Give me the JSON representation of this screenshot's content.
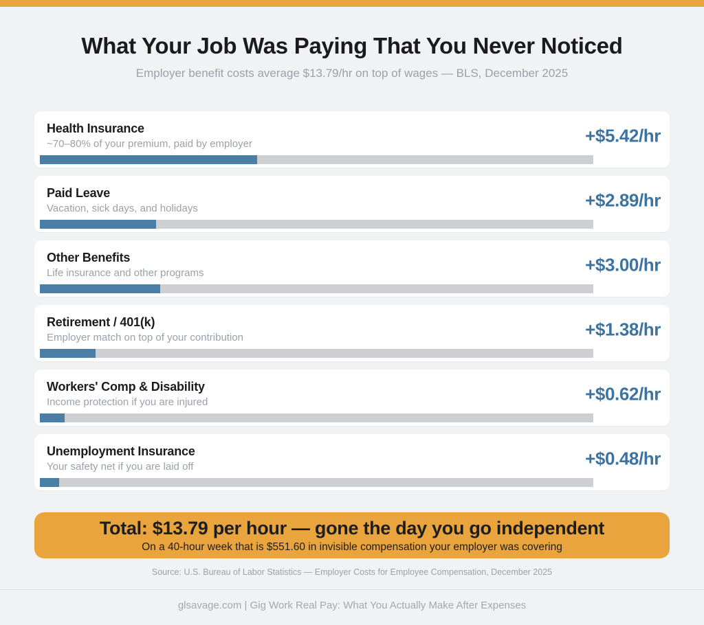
{
  "page": {
    "title": "What Your Job Was Paying That You Never Noticed",
    "subtitle": "Employer benefit costs average $13.79/hr on top of wages — BLS, December 2025",
    "source": "Source: U.S. Bureau of Labor Statistics — Employer Costs for Employee Compensation, December 2025",
    "footer": "glsavage.com  |  Gig Work Real Pay: What You Actually Make After Expenses"
  },
  "colors": {
    "accent_orange": "#E9A43D",
    "bar_blue": "#4B7EA4",
    "value_blue": "#3D73A0",
    "track_gray": "#CDCFD3",
    "background": "#F1F2F4"
  },
  "total_banner": {
    "headline": "Total: $13.79 per hour — gone the day you go independent",
    "subtext": "On a 40-hour week that is $551.60 in invisible compensation your employer was covering"
  },
  "benefits": [
    {
      "name": "Health Insurance",
      "description": "~70–80% of your premium, paid by employer",
      "value_label": "+$5.42/hr",
      "value": 5.42
    },
    {
      "name": "Paid Leave",
      "description": "Vacation, sick days, and holidays",
      "value_label": "+$2.89/hr",
      "value": 2.89
    },
    {
      "name": "Other Benefits",
      "description": "Life insurance and other programs",
      "value_label": "+$3.00/hr",
      "value": 3.0
    },
    {
      "name": "Retirement / 401(k)",
      "description": "Employer match on top of your contribution",
      "value_label": "+$1.38/hr",
      "value": 1.38
    },
    {
      "name": "Workers' Comp & Disability",
      "description": "Income protection if you are injured",
      "value_label": "+$0.62/hr",
      "value": 0.62
    },
    {
      "name": "Unemployment Insurance",
      "description": "Your safety net if you are laid off",
      "value_label": "+$0.48/hr",
      "value": 0.48
    }
  ],
  "chart_data": {
    "type": "bar",
    "orientation": "horizontal",
    "title": "What Your Job Was Paying That You Never Noticed",
    "subtitle": "Employer benefit costs average $13.79/hr on top of wages — BLS, December 2025",
    "categories": [
      "Health Insurance",
      "Paid Leave",
      "Other Benefits",
      "Retirement / 401(k)",
      "Workers' Comp & Disability",
      "Unemployment Insurance"
    ],
    "values": [
      5.42,
      2.89,
      3.0,
      1.38,
      0.62,
      0.48
    ],
    "value_labels": [
      "+$5.42/hr",
      "+$2.89/hr",
      "+$3.00/hr",
      "+$1.38/hr",
      "+$0.62/hr",
      "+$0.48/hr"
    ],
    "descriptions": [
      "~70–80% of your premium, paid by employer",
      "Vacation, sick days, and holidays",
      "Life insurance and other programs",
      "Employer match on top of your contribution",
      "Income protection if you are injured",
      "Your safety net if you are laid off"
    ],
    "total": 13.79,
    "total_weekly_40hr": 551.6,
    "unit": "$/hr",
    "bar_scale_max": 13.79,
    "xlim": [
      0,
      13.79
    ],
    "grid": false,
    "legend": false
  }
}
